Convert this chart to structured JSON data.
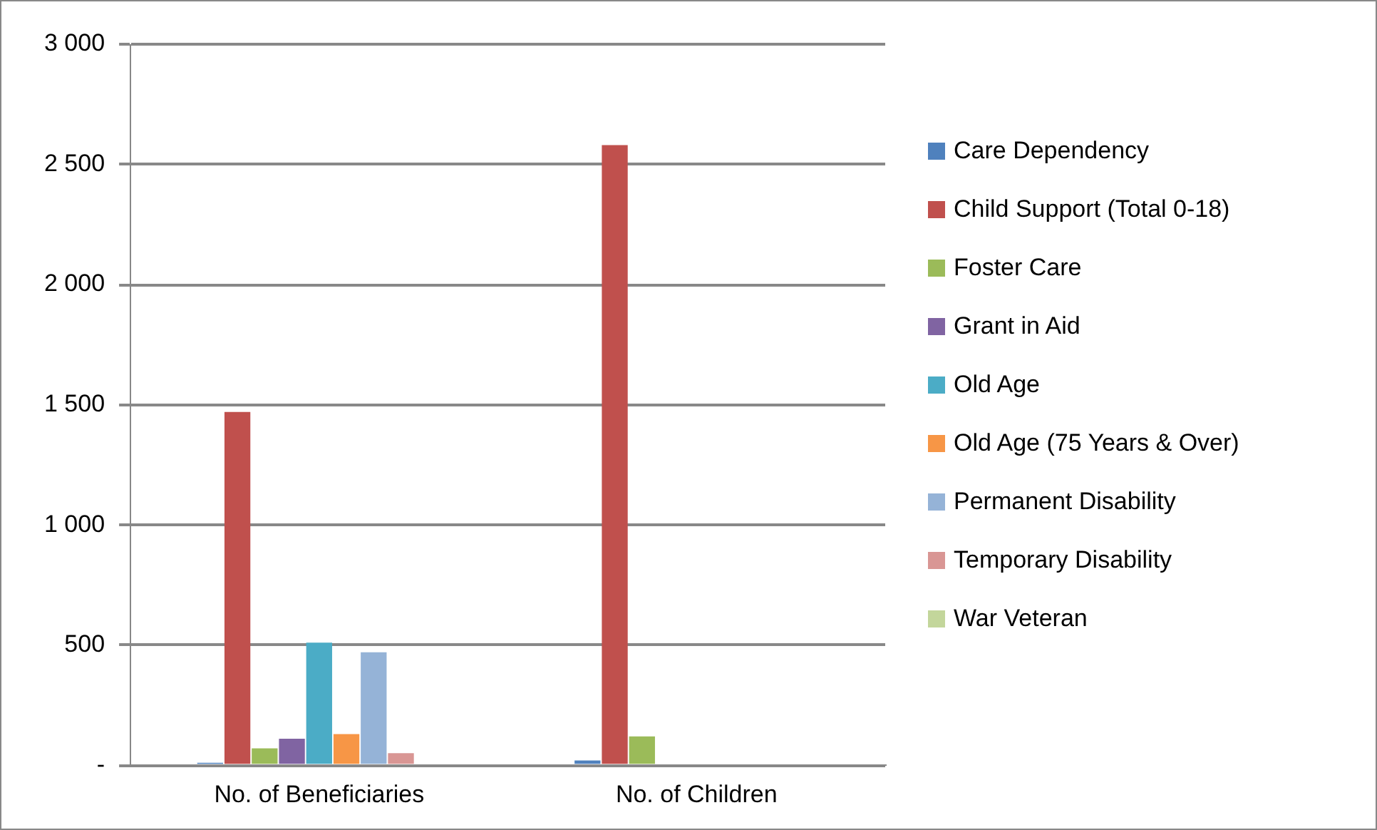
{
  "chart_data": {
    "type": "bar",
    "categories": [
      "No. of Beneficiaries",
      "No. of Children"
    ],
    "series": [
      {
        "name": "Care Dependency",
        "color": "#4f81bd",
        "values": [
          10,
          20
        ]
      },
      {
        "name": "Child Support (Total 0-18)",
        "color": "#c0504d",
        "values": [
          1470,
          2580
        ]
      },
      {
        "name": "Foster Care",
        "color": "#9bbb59",
        "values": [
          70,
          120
        ]
      },
      {
        "name": "Grant in Aid",
        "color": "#8064a2",
        "values": [
          110,
          0
        ]
      },
      {
        "name": "Old Age",
        "color": "#4bacc6",
        "values": [
          510,
          0
        ]
      },
      {
        "name": "Old Age (75 Years & Over)",
        "color": "#f79646",
        "values": [
          130,
          0
        ]
      },
      {
        "name": "Permanent Disability",
        "color": "#95b3d7",
        "values": [
          470,
          0
        ]
      },
      {
        "name": "Temporary Disability",
        "color": "#d99694",
        "values": [
          50,
          0
        ]
      },
      {
        "name": "War Veteran",
        "color": "#c3d69b",
        "values": [
          0,
          0
        ]
      }
    ],
    "ylim": [
      0,
      3000
    ],
    "yticks": [
      {
        "value": 0,
        "label": "-"
      },
      {
        "value": 500,
        "label": "500"
      },
      {
        "value": 1000,
        "label": "1 000"
      },
      {
        "value": 1500,
        "label": "1 500"
      },
      {
        "value": 2000,
        "label": "2 000"
      },
      {
        "value": 2500,
        "label": "2 500"
      },
      {
        "value": 3000,
        "label": "3 000"
      }
    ],
    "grid": "y",
    "legend": "right"
  }
}
